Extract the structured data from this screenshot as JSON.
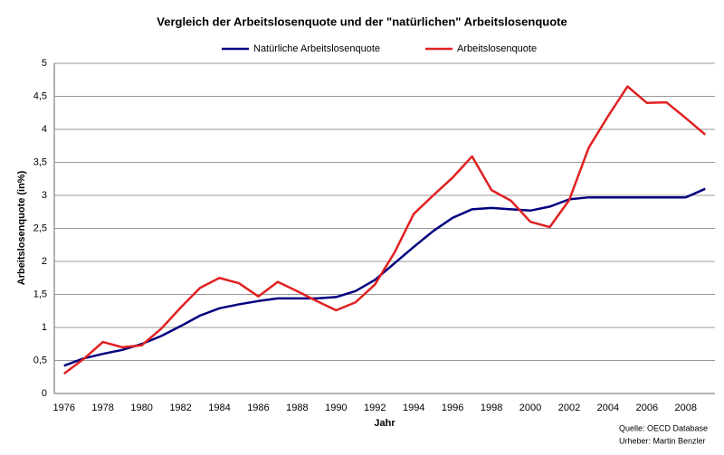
{
  "chart_data": {
    "type": "line",
    "title": "Vergleich der Arbeitslosenquote und der \"natürlichen\" Arbeitslosenquote",
    "x_label": "Jahr",
    "y_label": "Arbeitslosenquote (in%)",
    "source": "Quelle: OECD Database",
    "author": "Urheber: Martin Benzler",
    "categories": [
      "1976",
      null,
      "1978",
      null,
      "1980",
      null,
      "1982",
      null,
      "1984",
      null,
      "1986",
      null,
      "1988",
      null,
      "1990",
      null,
      "1992",
      null,
      "1994",
      null,
      "1996",
      null,
      "1998",
      null,
      "2000",
      null,
      "2002",
      null,
      "2004",
      null,
      "2006",
      null,
      "2008",
      null
    ],
    "series": [
      {
        "name": "Natürliche Arbeitslosenquote",
        "color": "#000080",
        "values": [
          0.42,
          0.53,
          0.6,
          0.66,
          0.75,
          0.87,
          1.02,
          1.18,
          1.29,
          1.35,
          1.4,
          1.44,
          1.44,
          1.44,
          1.46,
          1.55,
          1.72,
          1.97,
          2.22,
          2.46,
          2.66,
          2.79,
          2.81,
          2.79,
          2.77,
          2.83,
          2.94,
          2.97,
          2.97,
          2.97,
          2.97,
          2.97,
          2.97,
          3.1
        ]
      },
      {
        "name": "Arbeitslosenquote",
        "color": "#e02020",
        "values": [
          0.3,
          0.52,
          0.78,
          0.7,
          0.73,
          0.98,
          1.3,
          1.6,
          1.75,
          1.67,
          1.47,
          1.69,
          1.55,
          1.4,
          1.26,
          1.38,
          1.65,
          2.13,
          2.72,
          3.0,
          3.27,
          3.59,
          3.08,
          2.92,
          2.6,
          2.52,
          2.93,
          3.72,
          4.2,
          4.65,
          4.4,
          4.41,
          4.17,
          3.92
        ]
      }
    ],
    "ylim": [
      0,
      5
    ],
    "yticks": [
      0,
      {
        "value": 0.5,
        "label": "0,5"
      },
      1,
      {
        "value": 1.5,
        "label": "1,5"
      },
      2,
      {
        "value": 2.5,
        "label": "2,5"
      },
      3,
      {
        "value": 3.5,
        "label": "3,5"
      },
      4,
      {
        "value": 4.5,
        "label": "4,5"
      },
      5
    ],
    "grid": true
  }
}
